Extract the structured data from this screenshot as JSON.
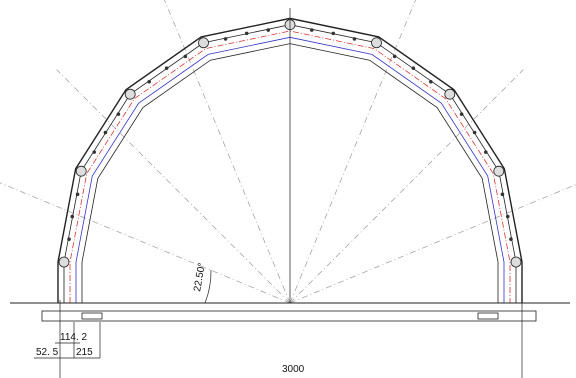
{
  "dimensions": {
    "angle": "22.50°",
    "offset_small": "114. 2",
    "edge": "52. 5",
    "plate": "215",
    "span": "3000"
  }
}
